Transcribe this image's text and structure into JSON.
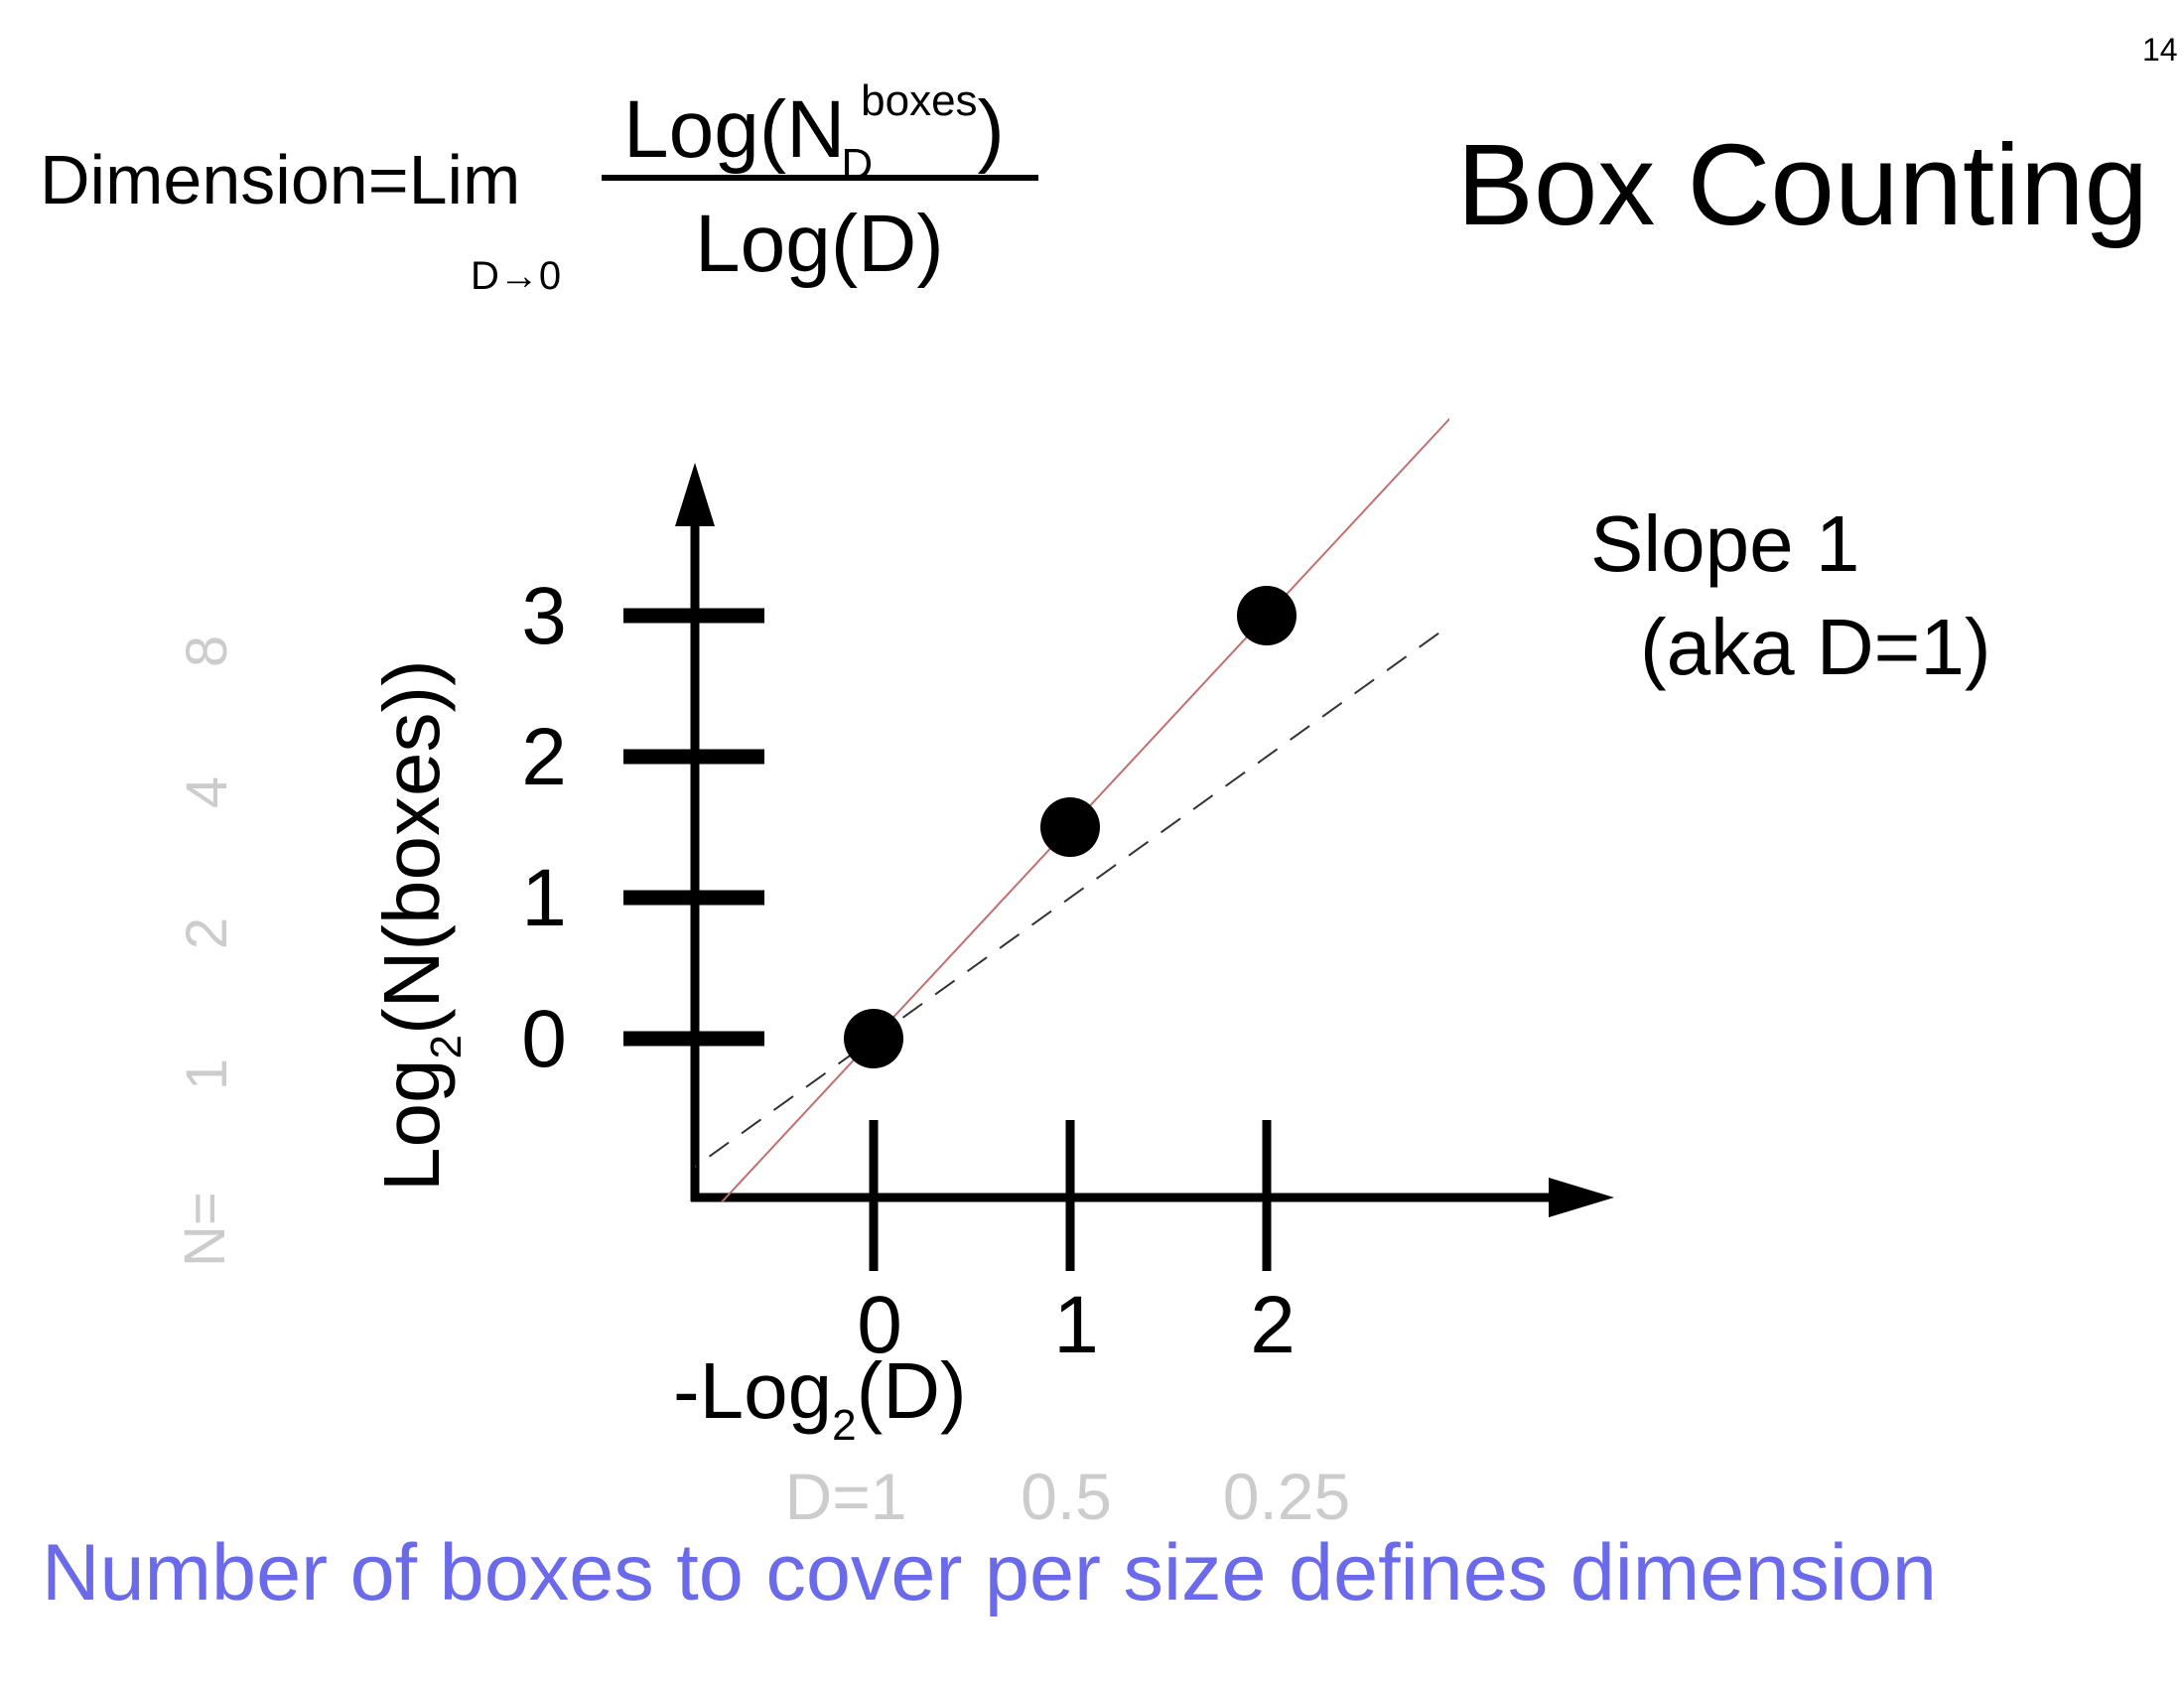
{
  "page_number": "14",
  "title": "Box Counting",
  "formula": {
    "lhs": "Dimension=Lim",
    "limit_sub": "D→0",
    "numerator_prefix": "Log(N",
    "numerator_sub": "D",
    "numerator_sup": "boxes",
    "numerator_suffix": ")",
    "denominator": "Log(D)"
  },
  "slope_label": {
    "line1": "Slope 1",
    "line2": "(aka D=1)"
  },
  "bottom_caption": "Number of boxes to cover per size defines dimension",
  "colors": {
    "axes": "#000000",
    "fit_line": "#c07070",
    "dashed_line": "#333333",
    "faint_labels": "#cccccc",
    "caption": "#6a6aea"
  },
  "chart_data": {
    "type": "scatter",
    "xlabel": {
      "prefix": "-Log",
      "sub": "2",
      "suffix": "(D)"
    },
    "ylabel": {
      "prefix": "Log",
      "sub": "2",
      "suffix": "(N(boxes))"
    },
    "x_ticks": [
      "0",
      "1",
      "2"
    ],
    "y_ticks": [
      "0",
      "1",
      "2",
      "3"
    ],
    "x_secondary_labels": [
      "D=1",
      "0.5",
      "0.25"
    ],
    "y_secondary_prefix": "N=",
    "y_secondary_labels": [
      "1",
      "2",
      "4",
      "8"
    ],
    "points": [
      {
        "x": 0,
        "y": 0
      },
      {
        "x": 1,
        "y": 1.5
      },
      {
        "x": 2,
        "y": 3
      }
    ],
    "fit_line": {
      "style": "solid",
      "slope": 1.5,
      "intercept": 0
    },
    "dashed_line": {
      "style": "dashed",
      "slope": 1,
      "intercept": 0
    },
    "grid": false,
    "legend": "none"
  }
}
